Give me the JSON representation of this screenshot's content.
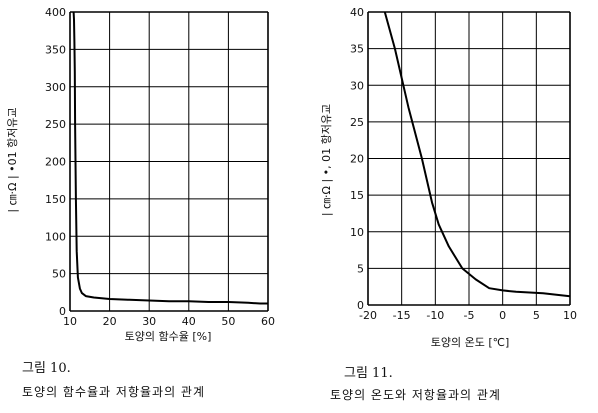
{
  "chart_data": [
    {
      "type": "line",
      "xlabel": "토양의 함수율 [%]",
      "ylabel": "| ㎝·Ω | •01 항저유교",
      "xlim": [
        10,
        60
      ],
      "ylim": [
        0,
        400
      ],
      "xticks": [
        10,
        20,
        30,
        40,
        50,
        60
      ],
      "yticks": [
        0,
        50,
        100,
        150,
        200,
        250,
        300,
        350,
        400
      ],
      "grid": true,
      "series": [
        {
          "x": [
            10.9,
            11.0,
            11.1,
            11.2,
            11.3,
            11.5,
            11.7,
            12,
            12.5,
            13,
            14,
            16,
            20,
            25,
            30,
            35,
            40,
            45,
            50,
            55,
            58,
            60
          ],
          "values": [
            400,
            390,
            360,
            320,
            250,
            150,
            80,
            45,
            30,
            24,
            20,
            18,
            16,
            15,
            14,
            13,
            13,
            12,
            12,
            11,
            10,
            10
          ]
        }
      ]
    },
    {
      "type": "line",
      "xlabel": "토양의 온도 [℃]",
      "ylabel": "| ㎝·Ω | •, 01 항저유교",
      "xlim": [
        -20,
        10
      ],
      "ylim": [
        0,
        40
      ],
      "xticks": [
        -20,
        -15,
        -10,
        -5,
        0,
        5,
        10
      ],
      "yticks": [
        0,
        5,
        10,
        15,
        20,
        25,
        30,
        35,
        40
      ],
      "grid": true,
      "series": [
        {
          "x": [
            -17.5,
            -16,
            -14,
            -12,
            -10.5,
            -9.5,
            -8,
            -6,
            -4,
            -2,
            0,
            2,
            4,
            6,
            8,
            10
          ],
          "values": [
            40,
            35,
            27,
            20,
            14,
            11,
            8,
            5,
            3.5,
            2.3,
            2.0,
            1.8,
            1.7,
            1.6,
            1.4,
            1.2
          ]
        }
      ]
    }
  ],
  "captions": [
    {
      "num": "그림 10.",
      "text": "토양의  함수율과  저항율과의  관계"
    },
    {
      "num": "그림 11.",
      "text": "토양의  온도와  저항율과의  관계"
    }
  ]
}
